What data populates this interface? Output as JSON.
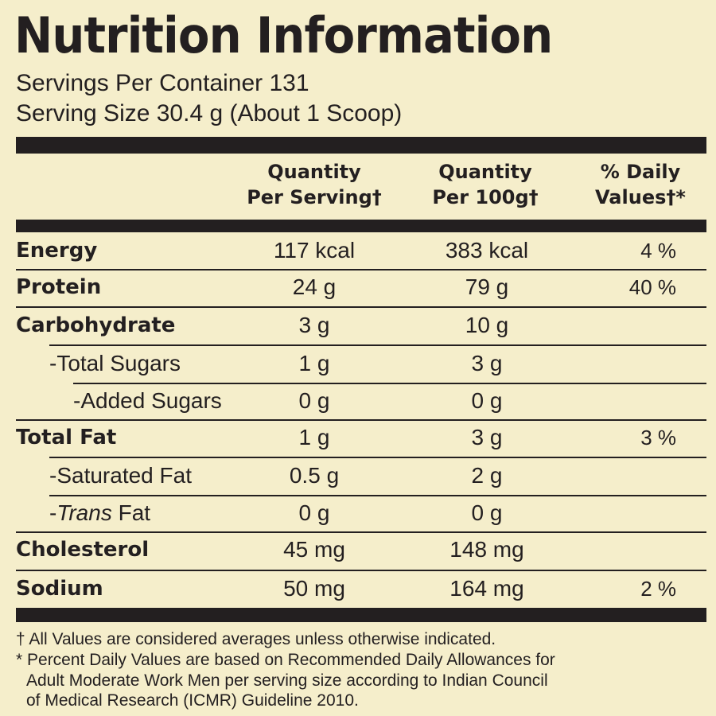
{
  "header": {
    "title": "Nutrition Information",
    "servings_per_container": "Servings Per Container 131",
    "serving_size": "Serving Size 30.4 g (About 1 Scoop)"
  },
  "table": {
    "columns": [
      [
        "Quantity",
        "Per Serving†"
      ],
      [
        "Quantity",
        "Per 100g†"
      ],
      [
        "% Daily",
        "Values†*"
      ]
    ],
    "rows": [
      {
        "label": "Energy",
        "per_serving": "117 kcal",
        "per_100g": "383 kcal",
        "daily_value": "4 %"
      },
      {
        "label": "Protein",
        "per_serving": "24 g",
        "per_100g": "79 g",
        "daily_value": "40 %"
      },
      {
        "label": "Carbohydrate",
        "per_serving": "3 g",
        "per_100g": "10 g"
      },
      {
        "label": "-Total Sugars",
        "per_serving": "1 g",
        "per_100g": "3 g"
      },
      {
        "label": "-Added Sugars",
        "per_serving": "0 g",
        "per_100g": "0 g"
      },
      {
        "label": "Total Fat",
        "per_serving": "1 g",
        "per_100g": "3 g",
        "daily_value": "3 %"
      },
      {
        "label": "-Saturated Fat",
        "per_serving": "0.5 g",
        "per_100g": "2 g"
      },
      {
        "label": "-",
        "label_italic": "Trans",
        "label_rest": " Fat",
        "per_serving": "0 g",
        "per_100g": "0 g"
      },
      {
        "label": "Cholesterol",
        "per_serving": "45 mg",
        "per_100g": "148 mg"
      },
      {
        "label": "Sodium",
        "per_serving": "50 mg",
        "per_100g": "164 mg",
        "daily_value": "2 %"
      }
    ]
  },
  "footnotes": [
    "† All Values are considered averages unless otherwise indicated.",
    "* Percent Daily Values are based on Recommended Daily Allowances for",
    "Adult Moderate Work Men per serving size according to Indian Council",
    "of Medical Research (ICMR) Guideline 2010."
  ]
}
